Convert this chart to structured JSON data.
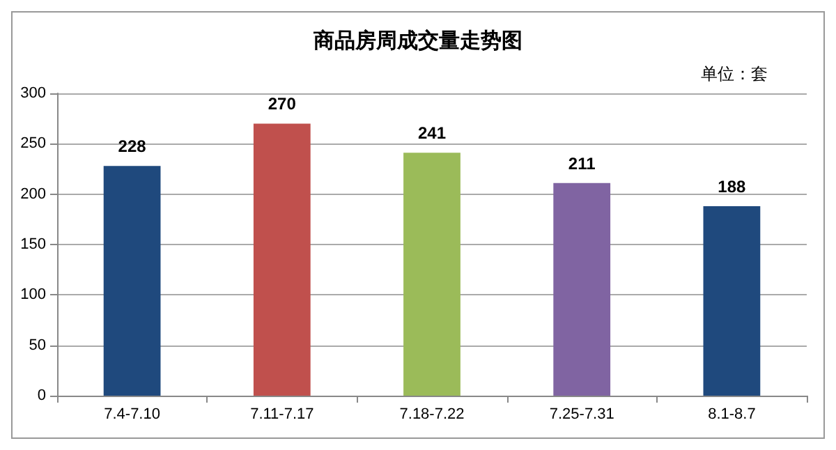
{
  "chart_data": {
    "type": "bar",
    "title": "商品房周成交量走势图",
    "annotations": [
      "单位：套"
    ],
    "categories": [
      "7.4-7.10",
      "7.11-7.17",
      "7.18-7.22",
      "7.25-7.31",
      "8.1-8.7"
    ],
    "values": [
      228,
      270,
      241,
      211,
      188
    ],
    "colors": [
      "#1f497d",
      "#c0504d",
      "#9bbb59",
      "#8064a2",
      "#1f497d"
    ],
    "ylim": [
      0,
      300
    ],
    "yticks": [
      0,
      50,
      100,
      150,
      200,
      250,
      300
    ],
    "grid": "y",
    "data_labels": true
  }
}
